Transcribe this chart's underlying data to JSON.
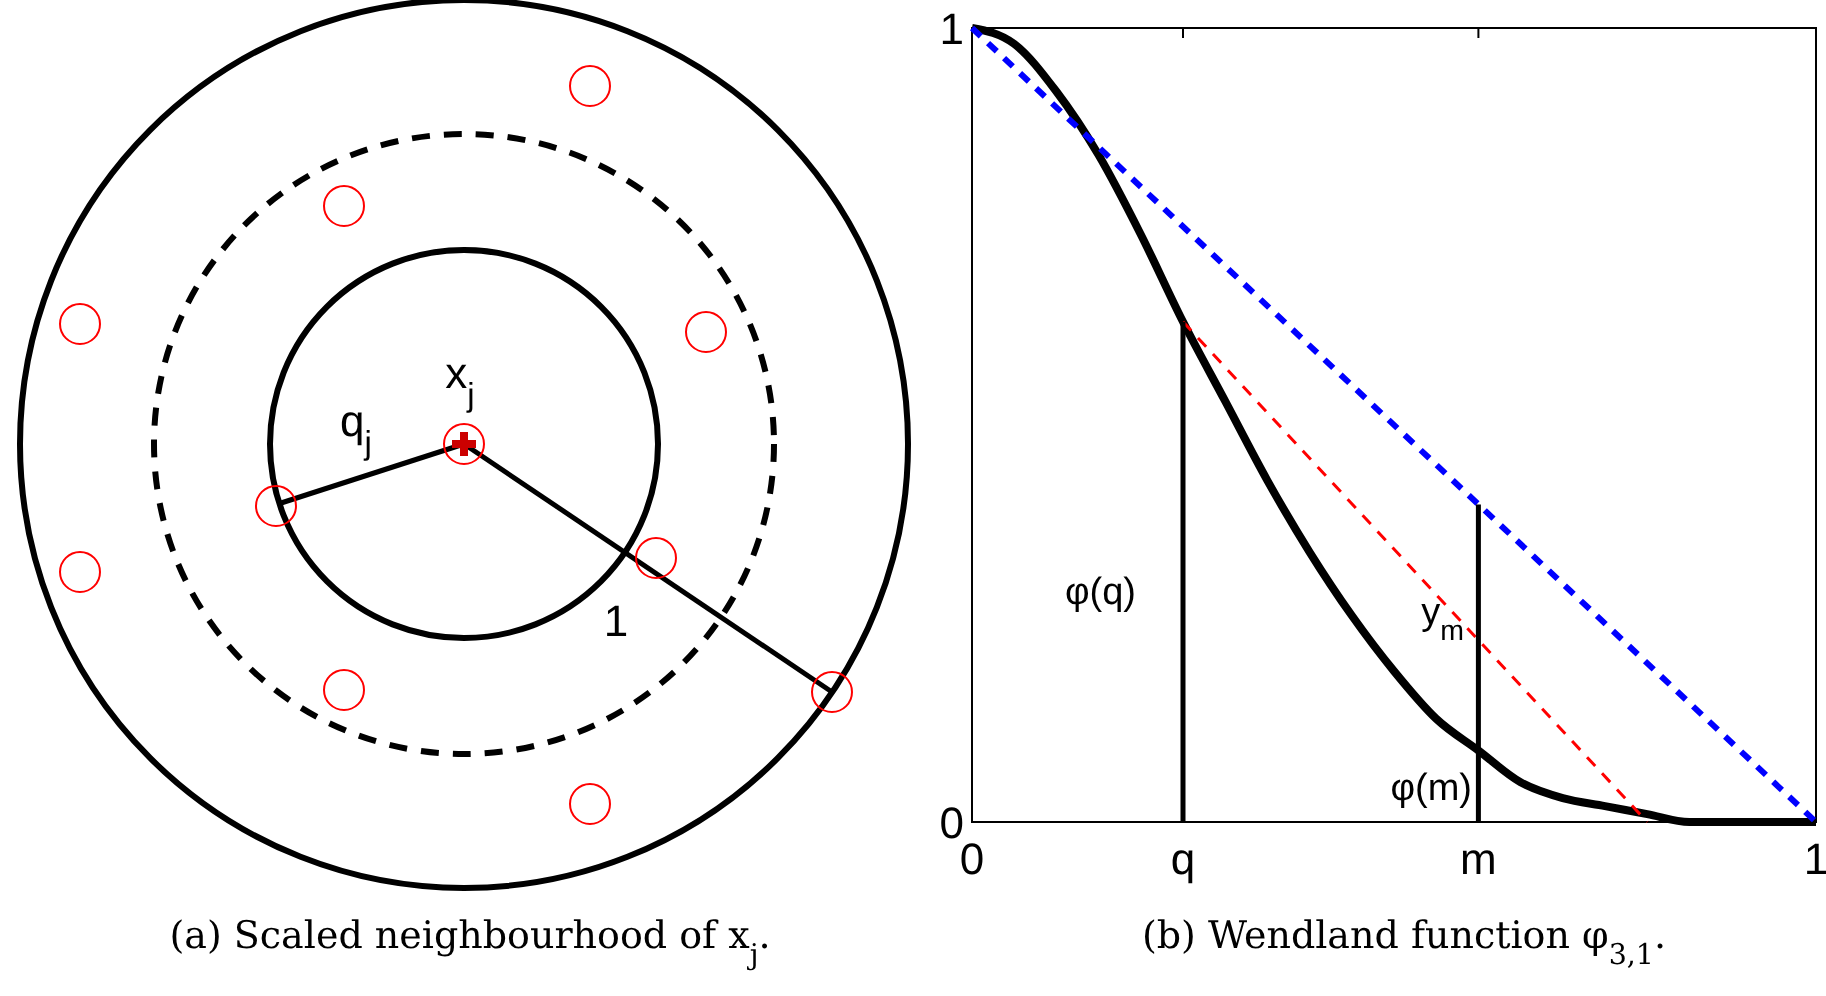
{
  "chart_data": [
    {
      "type": "other",
      "title": "(a) Scaled neighbourhood of x$_{j}$.",
      "annotations": [
        "x$_{j}$",
        "q$_{j}$",
        "1"
      ]
    },
    {
      "type": "line",
      "title": "(b) Wendland function φ$_{3,1}$.",
      "xlim": [
        0,
        1
      ],
      "ylim": [
        0,
        1
      ],
      "xticks": [
        0,
        {
          "value": 0.25,
          "label": "q"
        },
        {
          "value": 0.6,
          "label": "m"
        },
        1
      ],
      "yticks": [
        0,
        1
      ],
      "grid": false,
      "marker": "none",
      "series": [
        {
          "color": "#000000",
          "line_style": "solid",
          "x": [
            0,
            0.05,
            0.1,
            0.15,
            0.2,
            0.25,
            0.3,
            0.35,
            0.4,
            0.45,
            0.5,
            0.55,
            0.6,
            0.65,
            0.7,
            0.75,
            0.8,
            0.85,
            0.9,
            0.95,
            1
          ],
          "values": [
            1,
            0.98,
            0.92,
            0.84,
            0.74,
            0.63,
            0.53,
            0.43,
            0.34,
            0.26,
            0.19,
            0.13,
            0.09,
            0.05,
            0.03,
            0.02,
            0.01,
            0,
            0,
            0,
            0
          ]
        },
        {
          "color": "#0000ff",
          "line_style": "dashed",
          "x": [
            0,
            1
          ],
          "values": [
            1,
            0
          ]
        },
        {
          "color": "#ff0000",
          "line_style": "dashed",
          "x": [
            0.25,
            0.8
          ],
          "values": [
            0.63,
            0
          ]
        },
        {
          "color": "#000000",
          "line_style": "solid",
          "x": [
            0.25,
            0.25,
            0.25
          ],
          "values": [
            0,
            0.3,
            0.63
          ]
        },
        {
          "color": "#000000",
          "line_style": "solid",
          "x": [
            0.6,
            0.6,
            0.6
          ],
          "values": [
            0,
            0.2,
            0.4
          ]
        }
      ],
      "annotations": [
        "φ(q)",
        "y$_{m}$",
        "φ(m)"
      ]
    }
  ]
}
